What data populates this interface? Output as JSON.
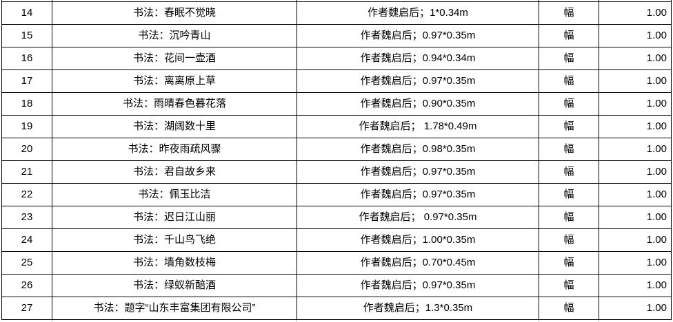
{
  "table": {
    "rows": [
      {
        "no": "14",
        "name": "书法：春眠不觉晓",
        "desc": "作者魏启后；1*0.34m",
        "unit": "幅",
        "qty": "1.00"
      },
      {
        "no": "15",
        "name": "书法：沉吟青山",
        "desc": "作者魏启后；0.97*0.35m",
        "unit": "幅",
        "qty": "1.00"
      },
      {
        "no": "16",
        "name": "书法：花间一壶酒",
        "desc": "作者魏启后；0.94*0.34m",
        "unit": "幅",
        "qty": "1.00"
      },
      {
        "no": "17",
        "name": "书法：离离原上草",
        "desc": "作者魏启后；0.97*0.35m",
        "unit": "幅",
        "qty": "1.00"
      },
      {
        "no": "18",
        "name": "书法：雨晴春色暮花落",
        "desc": "作者魏启后；0.90*0.35m",
        "unit": "幅",
        "qty": "1.00"
      },
      {
        "no": "19",
        "name": "书法：湖阔数十里",
        "desc": "作者魏启后； 1.78*0.49m",
        "unit": "幅",
        "qty": "1.00"
      },
      {
        "no": "20",
        "name": "书法：昨夜雨疏风骤",
        "desc": "作者魏启后；0.98*0.35m",
        "unit": "幅",
        "qty": "1.00"
      },
      {
        "no": "21",
        "name": "书法：君自故乡来",
        "desc": "作者魏启后；0.97*0.35m",
        "unit": "幅",
        "qty": "1.00"
      },
      {
        "no": "22",
        "name": "书法：佩玉比洁",
        "desc": "作者魏启后；0.97*0.35m",
        "unit": "幅",
        "qty": "1.00"
      },
      {
        "no": "23",
        "name": "书法：迟日江山丽",
        "desc": "作者魏启后； 0.97*0.35m",
        "unit": "幅",
        "qty": "1.00"
      },
      {
        "no": "24",
        "name": "书法：千山鸟飞绝",
        "desc": "作者魏启后；1.00*0.35m",
        "unit": "幅",
        "qty": "1.00"
      },
      {
        "no": "25",
        "name": "书法：墙角数枝梅",
        "desc": "作者魏启后；0.70*0.45m",
        "unit": "幅",
        "qty": "1.00"
      },
      {
        "no": "26",
        "name": "书法：绿蚁新醅酒",
        "desc": "作者魏启后；0.97*0.35m",
        "unit": "幅",
        "qty": "1.00"
      },
      {
        "no": "27",
        "name": "书法：题字“山东丰富集团有限公司”",
        "desc": "作者魏启后；1.3*0.35m",
        "unit": "幅",
        "qty": "1.00"
      }
    ]
  },
  "colors": {
    "border": "#000000",
    "text": "#000000",
    "background": "#ffffff",
    "cutoff_gridline": "#c4c4c4"
  }
}
